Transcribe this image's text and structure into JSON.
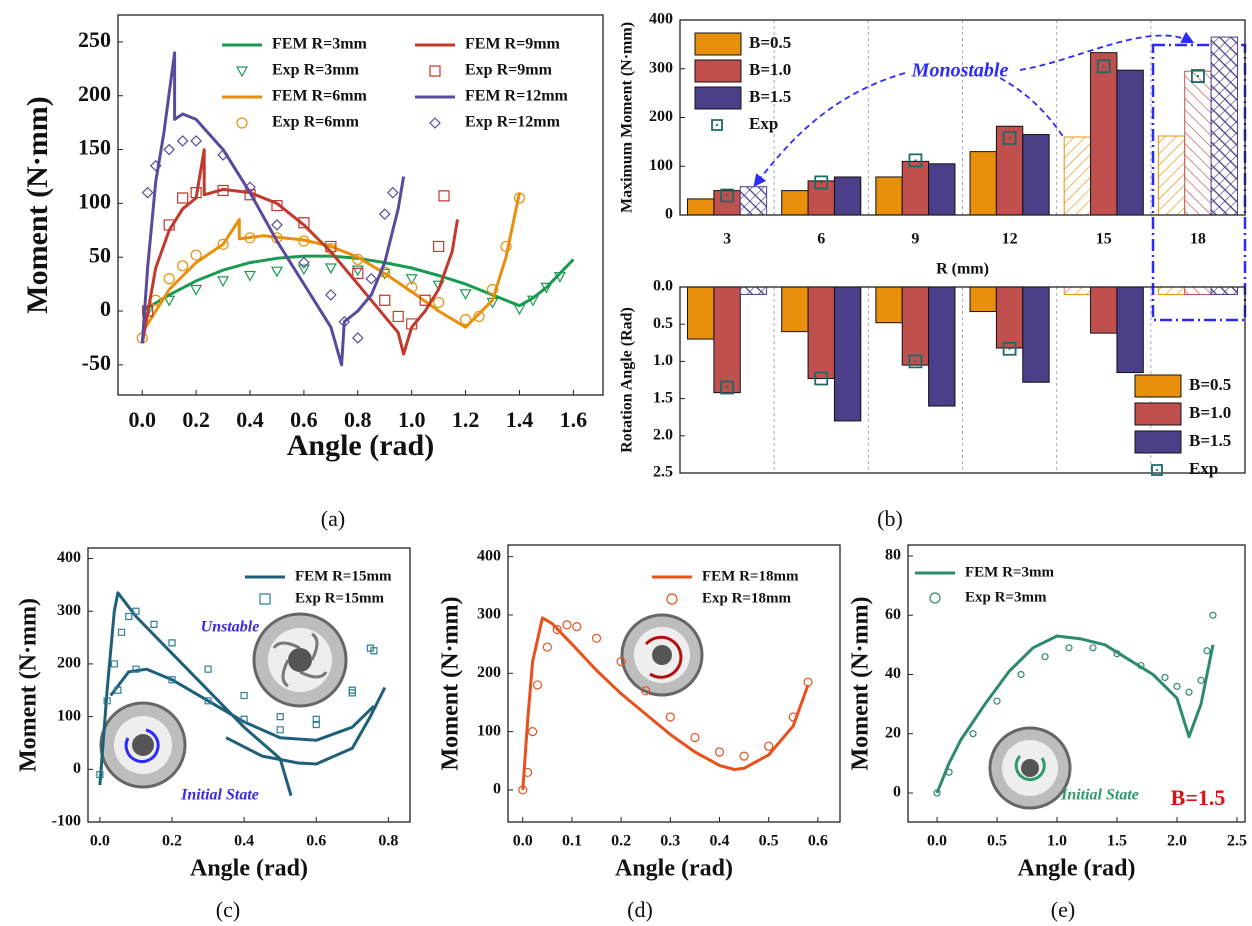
{
  "chart_data": [
    {
      "type": "line",
      "panel": "(a)",
      "xlabel": "Angle (rad)",
      "ylabel": "Moment (N·mm)",
      "xlim": [
        -0.09,
        1.71
      ],
      "ylim": [
        -78,
        275
      ],
      "xticks": [
        {
          "value": 0,
          "label": "0.0"
        },
        0.2,
        0.4,
        0.6,
        0.8,
        {
          "value": 1,
          "label": "1.0"
        },
        1.2,
        1.4,
        1.6
      ],
      "yticks": [
        -50,
        0,
        50,
        100,
        150,
        200,
        250
      ],
      "series": [
        {
          "name": "FEM R=3mm",
          "color": "#1a9a50",
          "marker": "line",
          "x": [
            0,
            0.1,
            0.2,
            0.3,
            0.4,
            0.5,
            0.6,
            0.7,
            0.8,
            0.9,
            1.0,
            1.1,
            1.2,
            1.3,
            1.4,
            1.45,
            1.5,
            1.55,
            1.6
          ],
          "values": [
            0,
            15,
            28,
            38,
            45,
            49,
            51,
            51,
            49,
            45,
            40,
            33,
            25,
            15,
            5,
            12,
            22,
            35,
            48
          ]
        },
        {
          "name": "Exp R=3mm",
          "color": "#1a9a50",
          "marker": "triangle",
          "x": [
            0.02,
            0.1,
            0.2,
            0.3,
            0.4,
            0.5,
            0.6,
            0.7,
            0.8,
            0.9,
            1.0,
            1.1,
            1.2,
            1.3,
            1.4,
            1.45,
            1.5,
            1.55
          ],
          "values": [
            0,
            10,
            20,
            28,
            33,
            37,
            39,
            40,
            38,
            35,
            30,
            24,
            16,
            8,
            2,
            10,
            22,
            32
          ]
        },
        {
          "name": "FEM R=6mm",
          "color": "#e8900c",
          "marker": "line",
          "x": [
            0,
            0.1,
            0.2,
            0.3,
            0.36,
            0.36,
            0.45,
            0.6,
            0.7,
            0.8,
            0.9,
            1.0,
            1.1,
            1.2,
            1.3,
            1.35,
            1.4
          ],
          "values": [
            -20,
            20,
            45,
            62,
            85,
            67,
            70,
            66,
            60,
            50,
            35,
            18,
            0,
            -15,
            10,
            50,
            110
          ]
        },
        {
          "name": "Exp R=6mm",
          "color": "#e8900c",
          "marker": "circle",
          "x": [
            0,
            0.05,
            0.1,
            0.15,
            0.2,
            0.3,
            0.4,
            0.5,
            0.6,
            0.7,
            0.8,
            0.9,
            1.0,
            1.1,
            1.2,
            1.25,
            1.3,
            1.35,
            1.4
          ],
          "values": [
            -25,
            10,
            30,
            42,
            52,
            62,
            68,
            68,
            65,
            58,
            48,
            36,
            22,
            8,
            -8,
            -5,
            20,
            60,
            105
          ]
        },
        {
          "name": "FEM R=9mm",
          "color": "#c0392b",
          "marker": "line",
          "x": [
            0,
            0.05,
            0.1,
            0.15,
            0.2,
            0.23,
            0.23,
            0.3,
            0.4,
            0.5,
            0.6,
            0.7,
            0.8,
            0.9,
            0.95,
            0.97,
            1.0,
            1.05,
            1.1,
            1.15,
            1.17
          ],
          "values": [
            -30,
            40,
            75,
            95,
            105,
            150,
            108,
            113,
            110,
            100,
            80,
            55,
            25,
            -5,
            -20,
            -40,
            -15,
            0,
            20,
            55,
            85
          ]
        },
        {
          "name": "Exp R=9mm",
          "color": "#c0392b",
          "marker": "square",
          "x": [
            0.02,
            0.1,
            0.15,
            0.2,
            0.3,
            0.4,
            0.5,
            0.6,
            0.7,
            0.8,
            0.9,
            0.95,
            1.0,
            1.05,
            1.1,
            1.12
          ],
          "values": [
            0,
            80,
            105,
            110,
            112,
            108,
            98,
            82,
            60,
            35,
            10,
            -5,
            -12,
            10,
            60,
            107
          ]
        },
        {
          "name": "FEM R=12mm",
          "color": "#5a4a9c",
          "marker": "line",
          "x": [
            0,
            0.02,
            0.05,
            0.08,
            0.12,
            0.12,
            0.15,
            0.2,
            0.3,
            0.4,
            0.5,
            0.6,
            0.7,
            0.74,
            0.75,
            0.8,
            0.85,
            0.9,
            0.95,
            0.97
          ],
          "values": [
            -30,
            40,
            120,
            165,
            240,
            178,
            183,
            178,
            150,
            110,
            65,
            25,
            -15,
            -50,
            -10,
            0,
            15,
            45,
            95,
            125
          ]
        },
        {
          "name": "Exp R=12mm",
          "color": "#5a4a9c",
          "marker": "diamond",
          "x": [
            0.02,
            0.05,
            0.1,
            0.15,
            0.2,
            0.3,
            0.4,
            0.5,
            0.6,
            0.7,
            0.75,
            0.8,
            0.85,
            0.9,
            0.93
          ],
          "values": [
            110,
            135,
            150,
            158,
            158,
            145,
            115,
            80,
            45,
            15,
            -10,
            -25,
            30,
            90,
            110
          ]
        }
      ]
    },
    {
      "type": "bar",
      "panel": "(b)",
      "xlabel": "R (mm)",
      "ylabel": "Maximum Moment (N·mm)",
      "categories": [
        "3",
        "6",
        "9",
        "12",
        "15",
        "18"
      ],
      "ylim": [
        0,
        400
      ],
      "yticks": [
        0,
        100,
        200,
        300,
        400
      ],
      "separators": true,
      "annotations": [
        "Monostable"
      ],
      "series": [
        {
          "name": "B=0.5",
          "color": "#e8900c",
          "values": [
            33,
            50,
            78,
            130,
            160,
            162
          ],
          "hatched": [
            false,
            false,
            false,
            false,
            true,
            true
          ]
        },
        {
          "name": "B=1.0",
          "color": "#c0504d",
          "values": [
            50,
            70,
            110,
            182,
            333,
            295
          ],
          "hatched": [
            false,
            false,
            false,
            false,
            false,
            true
          ]
        },
        {
          "name": "B=1.5",
          "color": "#4b3f8a",
          "values": [
            58,
            78,
            105,
            165,
            297,
            365
          ],
          "hatched": [
            true,
            false,
            false,
            false,
            false,
            true
          ]
        },
        {
          "name": "Exp",
          "color": "#1b6a6a",
          "marker": "dotted-square",
          "values": [
            40,
            67,
            112,
            158,
            305,
            285
          ]
        }
      ]
    },
    {
      "type": "bar",
      "ylabel": "Rotation Angle (Rad)",
      "y_inverted": true,
      "ylim": [
        0,
        2.5
      ],
      "yticks": [
        {
          "value": 0,
          "label": "0.0"
        },
        0.5,
        {
          "value": 1,
          "label": "1.0"
        },
        1.5,
        {
          "value": 2,
          "label": "2.0"
        },
        2.5
      ],
      "separators": true,
      "series": [
        {
          "name": "B=0.5",
          "color": "#e8900c",
          "values": [
            0.7,
            0.6,
            0.48,
            0.33,
            0.1,
            0.1
          ],
          "hatched": [
            false,
            false,
            false,
            false,
            true,
            true
          ]
        },
        {
          "name": "B=1.0",
          "color": "#c0504d",
          "values": [
            1.42,
            1.23,
            1.05,
            0.82,
            0.62,
            0.1
          ],
          "hatched": [
            false,
            false,
            false,
            false,
            false,
            true
          ]
        },
        {
          "name": "B=1.5",
          "color": "#4b3f8a",
          "values": [
            0.1,
            1.8,
            1.6,
            1.28,
            1.15,
            0.1
          ],
          "hatched": [
            true,
            false,
            false,
            false,
            false,
            true
          ]
        },
        {
          "name": "Exp",
          "color": "#1b6a6a",
          "marker": "dotted-square",
          "values": [
            1.35,
            1.23,
            1.0,
            0.83,
            null,
            null
          ]
        }
      ]
    },
    {
      "type": "line",
      "panel": "(c)",
      "xlabel": "Angle (rad)",
      "ylabel": "Moment (N·mm)",
      "xlim": [
        -0.033,
        0.86
      ],
      "ylim": [
        -100,
        420
      ],
      "xticks": [
        {
          "value": 0,
          "label": "0.0"
        },
        0.2,
        0.4,
        0.6,
        0.8
      ],
      "yticks": [
        -100,
        0,
        100,
        200,
        300,
        400
      ],
      "annotations": [
        "Unstable",
        "Initial State"
      ],
      "series": [
        {
          "name": "FEM R=15mm",
          "color": "#1f5f7a",
          "marker": "line",
          "x": [
            0,
            0.02,
            0.04,
            0.05,
            0.1,
            0.2,
            0.3,
            0.4,
            0.5,
            0.53,
            null,
            0.03,
            0.08,
            0.13,
            0.2,
            0.3,
            0.4,
            0.5,
            0.6,
            0.7,
            0.76,
            null,
            0.35,
            0.45,
            0.55,
            0.6,
            0.7,
            0.75,
            0.79
          ],
          "values": [
            -30,
            150,
            300,
            335,
            290,
            220,
            150,
            80,
            20,
            -50,
            null,
            140,
            185,
            190,
            170,
            130,
            90,
            60,
            55,
            80,
            120,
            null,
            60,
            25,
            12,
            10,
            40,
            100,
            155
          ]
        },
        {
          "name": "Exp R=15mm",
          "color": "#2f7f9a",
          "marker": "square",
          "x": [
            0,
            0.02,
            0.04,
            0.06,
            0.08,
            0.1,
            0.15,
            0.2,
            0.3,
            0.4,
            0.5,
            0.6,
            0.7,
            0.75,
            0.05,
            0.1,
            0.2,
            0.3,
            0.4,
            0.5,
            0.6,
            0.7,
            0.76
          ],
          "values": [
            -10,
            130,
            200,
            260,
            290,
            300,
            275,
            240,
            190,
            140,
            100,
            95,
            150,
            230,
            150,
            190,
            170,
            130,
            95,
            75,
            85,
            145,
            225
          ]
        }
      ]
    },
    {
      "type": "line",
      "panel": "(d)",
      "xlabel": "Angle (rad)",
      "ylabel": "Moment (N·mm)",
      "xlim": [
        -0.03,
        0.645
      ],
      "ylim": [
        -55,
        420
      ],
      "xticks": [
        {
          "value": 0,
          "label": "0.0"
        },
        0.1,
        0.2,
        0.3,
        0.4,
        0.5,
        0.6
      ],
      "yticks": [
        0,
        100,
        200,
        300,
        400
      ],
      "series": [
        {
          "name": "FEM R=18mm",
          "color": "#e8501c",
          "marker": "line",
          "x": [
            0,
            0.01,
            0.02,
            0.04,
            0.06,
            0.1,
            0.15,
            0.2,
            0.25,
            0.3,
            0.35,
            0.4,
            0.43,
            0.45,
            0.5,
            0.55,
            0.58
          ],
          "values": [
            0,
            120,
            220,
            295,
            285,
            250,
            205,
            165,
            130,
            95,
            65,
            42,
            35,
            37,
            60,
            110,
            180
          ]
        },
        {
          "name": "Exp R=18mm",
          "color": "#e8501c",
          "marker": "circle",
          "x": [
            0,
            0.01,
            0.02,
            0.03,
            0.05,
            0.07,
            0.09,
            0.11,
            0.15,
            0.2,
            0.25,
            0.3,
            0.35,
            0.4,
            0.45,
            0.5,
            0.55,
            0.58
          ],
          "values": [
            0,
            30,
            100,
            180,
            245,
            275,
            283,
            280,
            260,
            220,
            170,
            125,
            90,
            65,
            58,
            75,
            125,
            185
          ]
        }
      ]
    },
    {
      "type": "line",
      "panel": "(e)",
      "xlabel": "Angle (rad)",
      "ylabel": "Moment (N·mm)",
      "xlim": [
        -0.242,
        2.567
      ],
      "ylim": [
        -9.8,
        83.7
      ],
      "xticks": [
        {
          "value": 0,
          "label": "0.0"
        },
        0.5,
        {
          "value": 1,
          "label": "1.0"
        },
        1.5,
        {
          "value": 2,
          "label": "2.0"
        },
        2.5
      ],
      "yticks": [
        0,
        20,
        40,
        60,
        80
      ],
      "annotations": [
        "Initial State",
        "B=1.5"
      ],
      "series": [
        {
          "name": "FEM R=3mm",
          "color": "#2e8b6a",
          "marker": "line",
          "x": [
            0,
            0.1,
            0.2,
            0.4,
            0.6,
            0.8,
            1.0,
            1.2,
            1.4,
            1.6,
            1.8,
            2.0,
            2.1,
            2.2,
            2.3
          ],
          "values": [
            0,
            10,
            18,
            30,
            41,
            49,
            53,
            52,
            50,
            45,
            40,
            32,
            19,
            30,
            50
          ]
        },
        {
          "name": "Exp R=3mm",
          "color": "#2e8b6a",
          "marker": "circle",
          "x": [
            0,
            0.1,
            0.3,
            0.5,
            0.7,
            0.9,
            1.1,
            1.3,
            1.5,
            1.7,
            1.9,
            2.0,
            2.1,
            2.2,
            2.25,
            2.3
          ],
          "values": [
            0,
            7,
            20,
            31,
            40,
            46,
            49,
            49,
            47,
            43,
            39,
            36,
            34,
            38,
            48,
            60
          ]
        }
      ]
    }
  ]
}
